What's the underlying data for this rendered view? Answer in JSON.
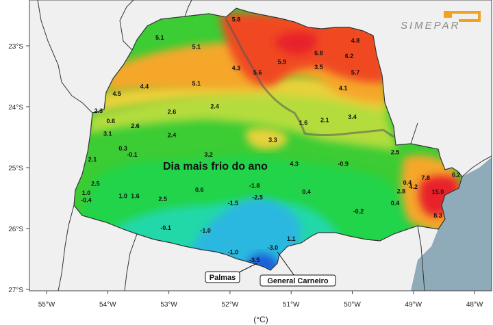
{
  "title": "Dia mais frio do ano",
  "unit": "(°C)",
  "brand": "SIMEPAR",
  "axes": {
    "longitudes": [
      "55°W",
      "54°W",
      "53°W",
      "52°W",
      "51°W",
      "50°W",
      "49°W",
      "48°W"
    ],
    "latitudes": [
      "23°S",
      "24°S",
      "25°S",
      "26°S",
      "27°S"
    ]
  },
  "callouts": {
    "palmas": "Palmas",
    "general_carneiro": "General Carneiro"
  },
  "colors": {
    "ocean": "#8faab8",
    "outside": "#f0f0f0",
    "orange_red": "#f04a24",
    "orange": "#f5a72c",
    "yellow": "#e8d23a",
    "light_green": "#b4dc3c",
    "green": "#3ccc34",
    "bright_green": "#22d44a",
    "teal": "#22d8a8",
    "cyan": "#2ab8e0",
    "blue": "#1a5fd8",
    "hot": "#e8202c"
  },
  "stations": [
    {
      "value": "5.1",
      "lon": -53.15,
      "lat": -22.9
    },
    {
      "value": "5.1",
      "lon": -52.55,
      "lat": -23.05
    },
    {
      "value": "5.8",
      "lon": -51.9,
      "lat": -22.6
    },
    {
      "value": "4.8",
      "lon": -49.95,
      "lat": -22.95
    },
    {
      "value": "6.8",
      "lon": -50.55,
      "lat": -23.15
    },
    {
      "value": "6.2",
      "lon": -50.05,
      "lat": -23.2
    },
    {
      "value": "5.9",
      "lon": -51.15,
      "lat": -23.3
    },
    {
      "value": "3.5",
      "lon": -50.55,
      "lat": -23.38
    },
    {
      "value": "4.3",
      "lon": -51.9,
      "lat": -23.4
    },
    {
      "value": "5.6",
      "lon": -51.55,
      "lat": -23.47
    },
    {
      "value": "5.7",
      "lon": -49.95,
      "lat": -23.47
    },
    {
      "value": "4.4",
      "lon": -53.4,
      "lat": -23.7
    },
    {
      "value": "5.1",
      "lon": -52.55,
      "lat": -23.65
    },
    {
      "value": "4.5",
      "lon": -53.85,
      "lat": -23.82
    },
    {
      "value": "4.1",
      "lon": -50.15,
      "lat": -23.73
    },
    {
      "value": "2.3",
      "lon": -54.15,
      "lat": -24.1
    },
    {
      "value": "2.4",
      "lon": -52.25,
      "lat": -24.03
    },
    {
      "value": "2.6",
      "lon": -52.95,
      "lat": -24.12
    },
    {
      "value": "0.6",
      "lon": -53.95,
      "lat": -24.27
    },
    {
      "value": "2.6",
      "lon": -53.55,
      "lat": -24.35
    },
    {
      "value": "1.6",
      "lon": -50.8,
      "lat": -24.3
    },
    {
      "value": "2.1",
      "lon": -50.45,
      "lat": -24.25
    },
    {
      "value": "3.4",
      "lon": -50.0,
      "lat": -24.2
    },
    {
      "value": "3.1",
      "lon": -54.0,
      "lat": -24.48
    },
    {
      "value": "2.4",
      "lon": -52.95,
      "lat": -24.5
    },
    {
      "value": "3.3",
      "lon": -51.3,
      "lat": -24.58
    },
    {
      "value": "0.3",
      "lon": -53.75,
      "lat": -24.72
    },
    {
      "value": "-0.1",
      "lon": -53.6,
      "lat": -24.82
    },
    {
      "value": "3.2",
      "lon": -52.35,
      "lat": -24.82
    },
    {
      "value": "2.1",
      "lon": -54.25,
      "lat": -24.9
    },
    {
      "value": "4.3",
      "lon": -50.95,
      "lat": -24.97
    },
    {
      "value": "-0.9",
      "lon": -50.15,
      "lat": -24.97
    },
    {
      "value": "2.5",
      "lon": -49.3,
      "lat": -24.78
    },
    {
      "value": "2.5",
      "lon": -54.2,
      "lat": -25.3
    },
    {
      "value": "-1.8",
      "lon": -51.6,
      "lat": -25.33
    },
    {
      "value": "0.6",
      "lon": -52.5,
      "lat": -25.4
    },
    {
      "value": "0.4",
      "lon": -50.75,
      "lat": -25.43
    },
    {
      "value": "7.8",
      "lon": -48.8,
      "lat": -25.2
    },
    {
      "value": "6.2",
      "lon": -48.3,
      "lat": -25.15
    },
    {
      "value": "0.4",
      "lon": -49.1,
      "lat": -25.28
    },
    {
      "value": "4.2",
      "lon": -49.0,
      "lat": -25.35
    },
    {
      "value": "2.8",
      "lon": -49.2,
      "lat": -25.42
    },
    {
      "value": "15.0",
      "lon": -48.6,
      "lat": -25.43
    },
    {
      "value": "1.0",
      "lon": -54.35,
      "lat": -25.45
    },
    {
      "value": "-0.4",
      "lon": -54.35,
      "lat": -25.57
    },
    {
      "value": "1.0",
      "lon": -53.75,
      "lat": -25.5
    },
    {
      "value": "1.6",
      "lon": -53.55,
      "lat": -25.5
    },
    {
      "value": "2.5",
      "lon": -53.1,
      "lat": -25.55
    },
    {
      "value": "-2.5",
      "lon": -51.55,
      "lat": -25.52
    },
    {
      "value": "-1.5",
      "lon": -51.95,
      "lat": -25.62
    },
    {
      "value": "0.4",
      "lon": -49.3,
      "lat": -25.62
    },
    {
      "value": "-0.2",
      "lon": -49.9,
      "lat": -25.75
    },
    {
      "value": "8.3",
      "lon": -48.6,
      "lat": -25.82
    },
    {
      "value": "-0.1",
      "lon": -53.05,
      "lat": -26.02
    },
    {
      "value": "-1.0",
      "lon": -52.4,
      "lat": -26.07
    },
    {
      "value": "1.1",
      "lon": -51.0,
      "lat": -26.2
    },
    {
      "value": "-1.0",
      "lon": -51.95,
      "lat": -26.42
    },
    {
      "value": "-3.0",
      "lon": -51.3,
      "lat": -26.35
    },
    {
      "value": "-3.5",
      "lon": -51.6,
      "lat": -26.55
    }
  ]
}
